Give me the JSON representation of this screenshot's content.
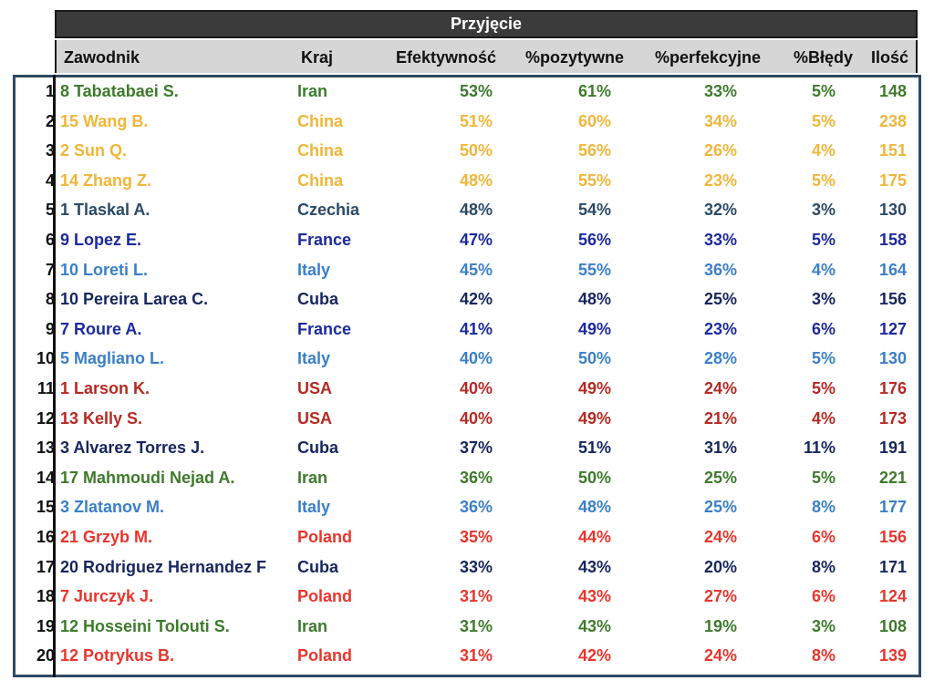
{
  "title": "Przyjęcie",
  "headers": {
    "name": "Zawodnik",
    "country": "Kraj",
    "efficiency": "Efektywność",
    "positive": "%pozytywne",
    "perfect": "%perfekcyjne",
    "errors": "%Błędy",
    "count": "Ilość"
  },
  "colors": {
    "Iran": "#3e7a2c",
    "China": "#f0b63a",
    "Czechia": "#2b4a66",
    "France": "#1c2a9c",
    "Italy": "#3a7fc8",
    "Cuba": "#17265e",
    "USA": "#b52a24",
    "Poland": "#e8352c"
  },
  "rows": [
    {
      "rank": "1",
      "name": "8 Tabatabaei S.",
      "country": "Iran",
      "efficiency": "53%",
      "positive": "61%",
      "perfect": "33%",
      "errors": "5%",
      "count": "148"
    },
    {
      "rank": "2",
      "name": "15 Wang B.",
      "country": "China",
      "efficiency": "51%",
      "positive": "60%",
      "perfect": "34%",
      "errors": "5%",
      "count": "238"
    },
    {
      "rank": "3",
      "name": "2 Sun Q.",
      "country": "China",
      "efficiency": "50%",
      "positive": "56%",
      "perfect": "26%",
      "errors": "4%",
      "count": "151"
    },
    {
      "rank": "4",
      "name": "14 Zhang Z.",
      "country": "China",
      "efficiency": "48%",
      "positive": "55%",
      "perfect": "23%",
      "errors": "5%",
      "count": "175"
    },
    {
      "rank": "5",
      "name": "1 Tlaskal A.",
      "country": "Czechia",
      "efficiency": "48%",
      "positive": "54%",
      "perfect": "32%",
      "errors": "3%",
      "count": "130"
    },
    {
      "rank": "6",
      "name": "9 Lopez E.",
      "country": "France",
      "efficiency": "47%",
      "positive": "56%",
      "perfect": "33%",
      "errors": "5%",
      "count": "158"
    },
    {
      "rank": "7",
      "name": "10 Loreti L.",
      "country": "Italy",
      "efficiency": "45%",
      "positive": "55%",
      "perfect": "36%",
      "errors": "4%",
      "count": "164"
    },
    {
      "rank": "8",
      "name": "10 Pereira Larea C.",
      "country": "Cuba",
      "efficiency": "42%",
      "positive": "48%",
      "perfect": "25%",
      "errors": "3%",
      "count": "156"
    },
    {
      "rank": "9",
      "name": "7 Roure A.",
      "country": "France",
      "efficiency": "41%",
      "positive": "49%",
      "perfect": "23%",
      "errors": "6%",
      "count": "127"
    },
    {
      "rank": "10",
      "name": "5 Magliano L.",
      "country": "Italy",
      "efficiency": "40%",
      "positive": "50%",
      "perfect": "28%",
      "errors": "5%",
      "count": "130"
    },
    {
      "rank": "11",
      "name": "1 Larson K.",
      "country": "USA",
      "efficiency": "40%",
      "positive": "49%",
      "perfect": "24%",
      "errors": "5%",
      "count": "176"
    },
    {
      "rank": "12",
      "name": "13 Kelly S.",
      "country": "USA",
      "efficiency": "40%",
      "positive": "49%",
      "perfect": "21%",
      "errors": "4%",
      "count": "173"
    },
    {
      "rank": "13",
      "name": "3 Alvarez Torres J.",
      "country": "Cuba",
      "efficiency": "37%",
      "positive": "51%",
      "perfect": "31%",
      "errors": "11%",
      "count": "191"
    },
    {
      "rank": "14",
      "name": "17 Mahmoudi Nejad A.",
      "country": "Iran",
      "efficiency": "36%",
      "positive": "50%",
      "perfect": "25%",
      "errors": "5%",
      "count": "221"
    },
    {
      "rank": "15",
      "name": "3 Zlatanov M.",
      "country": "Italy",
      "efficiency": "36%",
      "positive": "48%",
      "perfect": "25%",
      "errors": "8%",
      "count": "177"
    },
    {
      "rank": "16",
      "name": "21 Grzyb M.",
      "country": "Poland",
      "efficiency": "35%",
      "positive": "44%",
      "perfect": "24%",
      "errors": "6%",
      "count": "156"
    },
    {
      "rank": "17",
      "name": "20 Rodriguez Hernandez F",
      "country": "Cuba",
      "efficiency": "33%",
      "positive": "43%",
      "perfect": "20%",
      "errors": "8%",
      "count": "171"
    },
    {
      "rank": "18",
      "name": "7 Jurczyk J.",
      "country": "Poland",
      "efficiency": "31%",
      "positive": "43%",
      "perfect": "27%",
      "errors": "6%",
      "count": "124"
    },
    {
      "rank": "19",
      "name": "12 Hosseini Tolouti S.",
      "country": "Iran",
      "efficiency": "31%",
      "positive": "43%",
      "perfect": "19%",
      "errors": "3%",
      "count": "108"
    },
    {
      "rank": "20",
      "name": "12 Potrykus B.",
      "country": "Poland",
      "efficiency": "31%",
      "positive": "42%",
      "perfect": "24%",
      "errors": "8%",
      "count": "139"
    }
  ]
}
